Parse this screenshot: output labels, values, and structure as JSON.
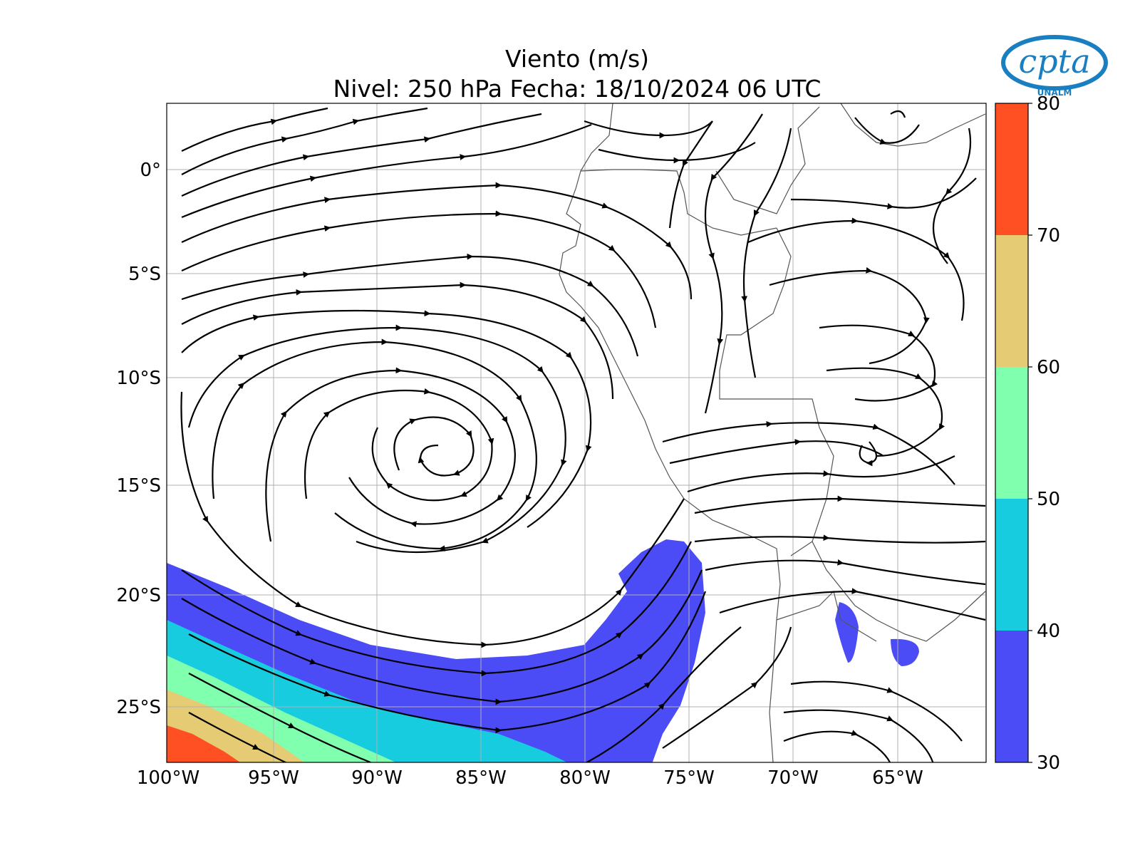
{
  "title": {
    "line1": "Viento (m/s)",
    "line2": "Nivel: 250 hPa Fecha: 18/10/2024 06 UTC"
  },
  "logo": {
    "name": "cpta",
    "subtitle": "UNALM",
    "color": "#1a7fc1"
  },
  "axes": {
    "x_ticks": [
      "100°W",
      "95°W",
      "90°W",
      "85°W",
      "80°W",
      "75°W",
      "70°W",
      "65°W"
    ],
    "y_ticks": [
      "0°",
      "5°S",
      "10°S",
      "15°S",
      "20°S",
      "25°S"
    ]
  },
  "colorbar": {
    "ticks": [
      "80",
      "70",
      "60",
      "50",
      "40",
      "30"
    ],
    "bands": [
      {
        "range": "70-80",
        "color": "#ff5024"
      },
      {
        "range": "60-70",
        "color": "#e5cb73"
      },
      {
        "range": "50-60",
        "color": "#80ffaf"
      },
      {
        "range": "40-50",
        "color": "#18cce0"
      },
      {
        "range": "30-40",
        "color": "#4b4cf5"
      }
    ]
  }
}
